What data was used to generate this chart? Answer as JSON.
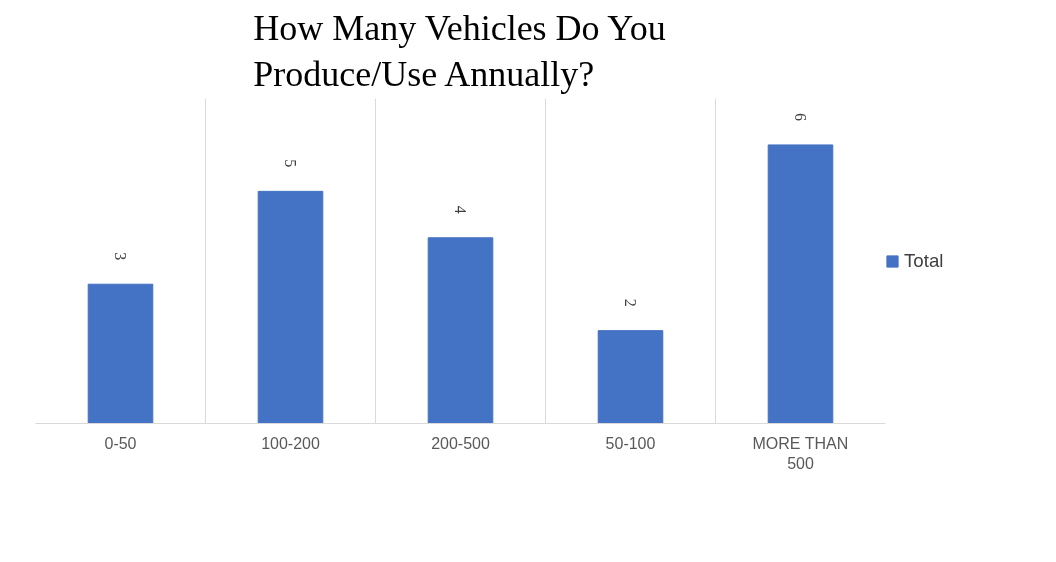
{
  "chart_data": {
    "type": "bar",
    "title": "How Many Vehicles Do You Produce/Use Annually?",
    "categories": [
      "0-50",
      "100-200",
      "200-500",
      "50-100",
      "MORE THAN 500"
    ],
    "series": [
      {
        "name": "Total",
        "color": "#4472c4",
        "values": [
          3,
          5,
          4,
          2,
          6
        ]
      }
    ],
    "ylim": [
      0,
      7
    ],
    "tick_labels": "x",
    "data_labels": true,
    "grid": "x",
    "legend": "right"
  }
}
